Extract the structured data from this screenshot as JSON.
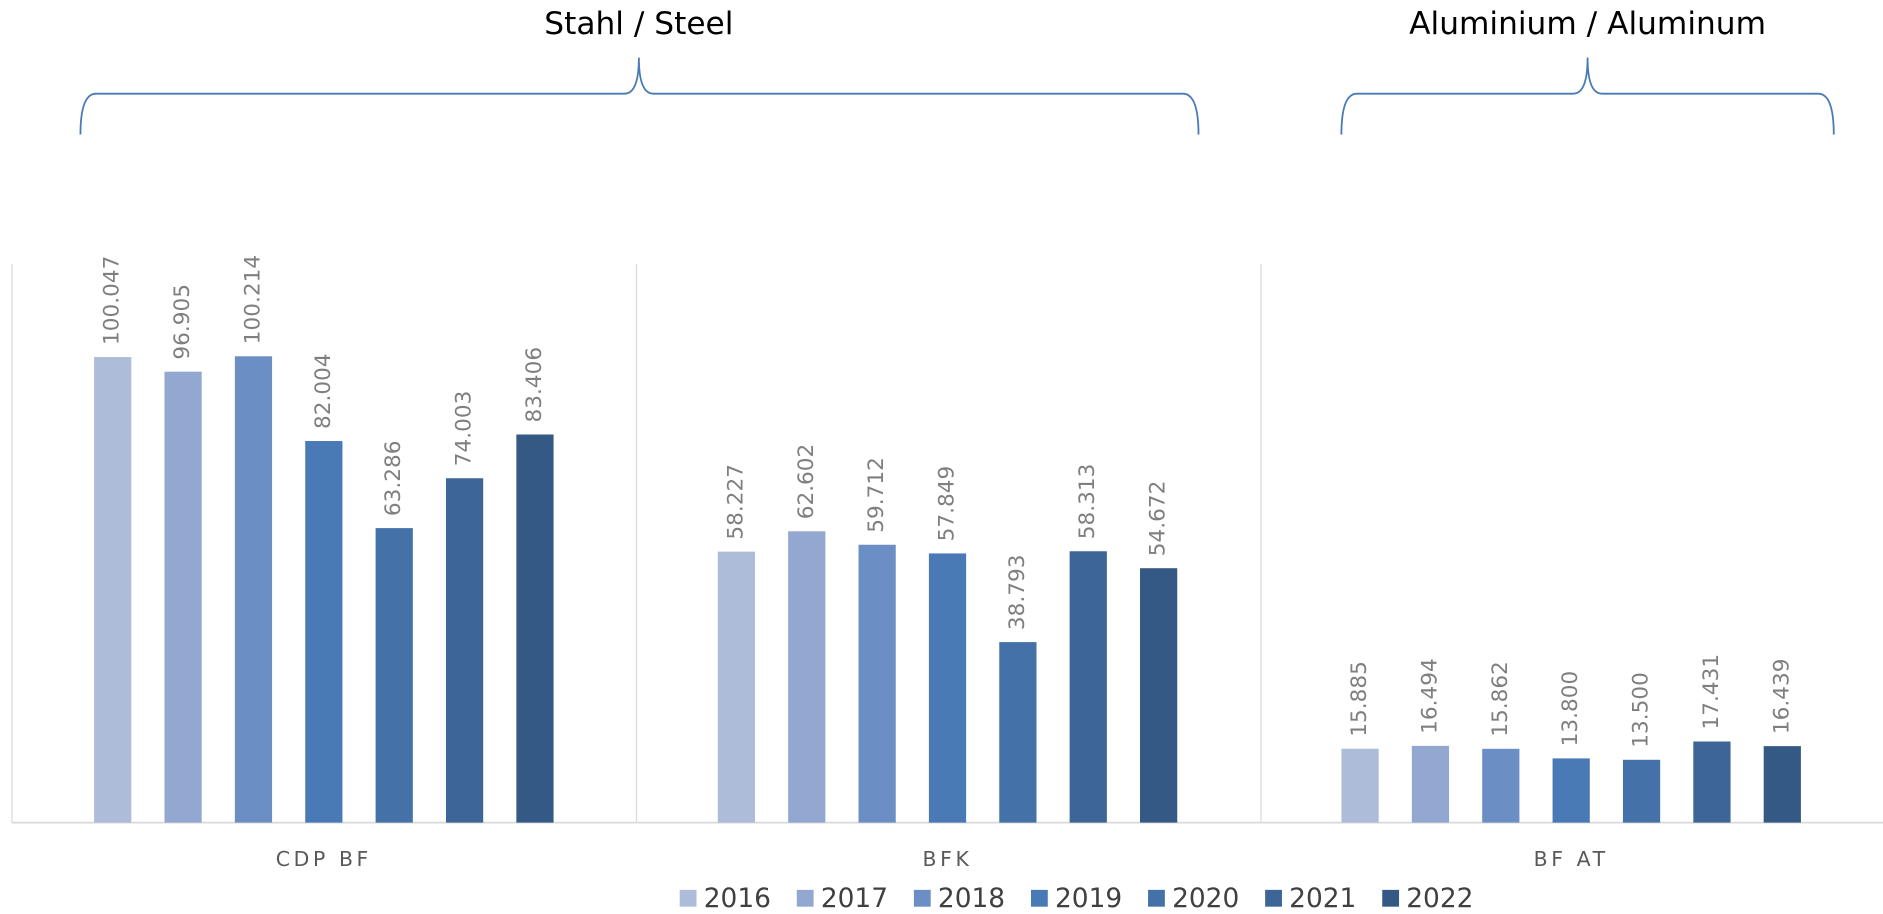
{
  "chart_data": {
    "type": "bar",
    "annotations": [
      {
        "text": "Stahl / Steel"
      },
      {
        "text": "Aluminium / Aluminum"
      }
    ],
    "categories": [
      "CDP BF",
      "BFK",
      "BF AT"
    ],
    "ylim": [
      0,
      120
    ],
    "series": [
      {
        "name": "2016",
        "color": "#adbcd9",
        "values": [
          100.047,
          58.227,
          15.885
        ],
        "value_labels": [
          "100.047",
          "58.227",
          "15.885"
        ]
      },
      {
        "name": "2017",
        "color": "#92a8d0",
        "values": [
          96.905,
          62.602,
          16.494
        ],
        "value_labels": [
          "96.905",
          "62.602",
          "16.494"
        ]
      },
      {
        "name": "2018",
        "color": "#6b8fc4",
        "values": [
          100.214,
          59.712,
          15.862
        ],
        "value_labels": [
          "100.214",
          "59.712",
          "15.862"
        ]
      },
      {
        "name": "2019",
        "color": "#4a7ab5",
        "values": [
          82.004,
          57.849,
          13.8
        ],
        "value_labels": [
          "82.004",
          "57.849",
          "13.800"
        ]
      },
      {
        "name": "2020",
        "color": "#4472a8",
        "values": [
          63.286,
          38.793,
          13.5
        ],
        "value_labels": [
          "63.286",
          "38.793",
          "13.500"
        ]
      },
      {
        "name": "2021",
        "color": "#3d6597",
        "values": [
          74.003,
          58.313,
          17.431
        ],
        "value_labels": [
          "74.003",
          "58.313",
          "17.431"
        ]
      },
      {
        "name": "2022",
        "color": "#355985",
        "values": [
          83.406,
          54.672,
          16.439
        ],
        "value_labels": [
          "83.406",
          "54.672",
          "16.439"
        ]
      }
    ]
  }
}
